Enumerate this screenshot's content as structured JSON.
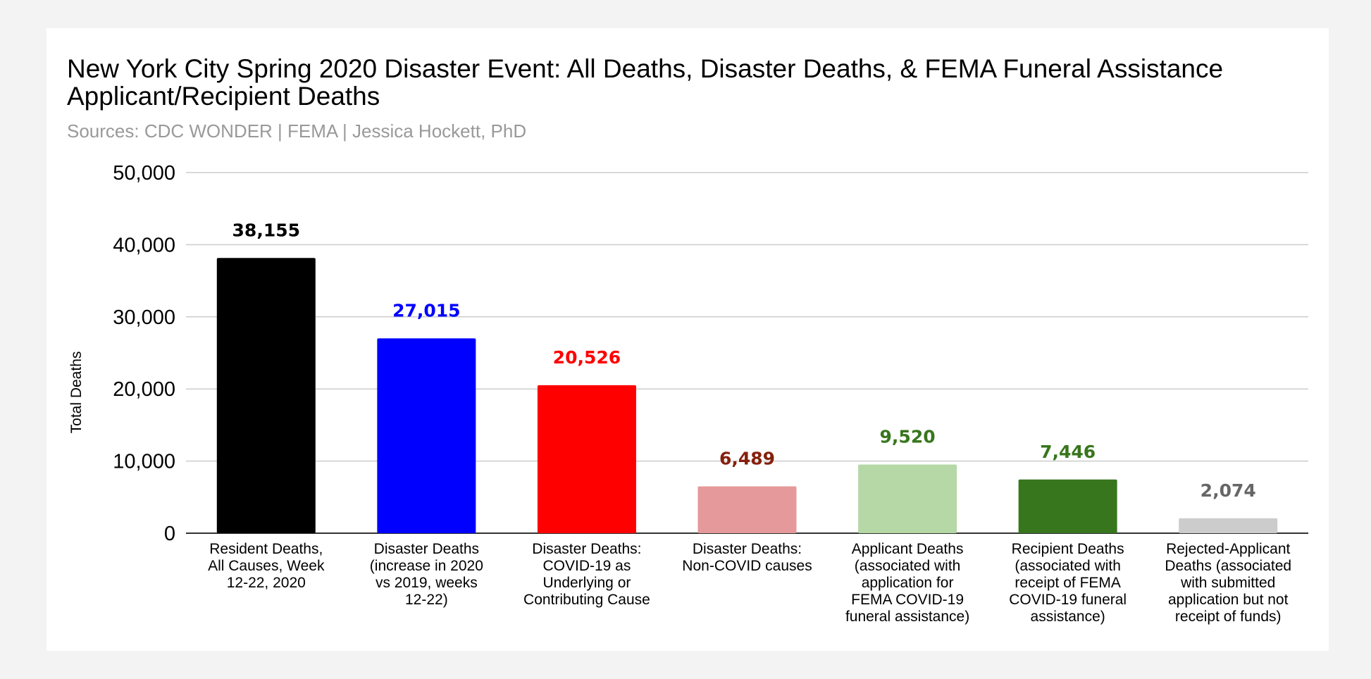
{
  "chart_data": {
    "type": "bar",
    "title": "New York City Spring 2020 Disaster Event: All Deaths, Disaster Deaths, & FEMA Funeral Assistance Applicant/Recipient Deaths",
    "subtitle": "Sources: CDC WONDER | FEMA | Jessica Hockett, PhD",
    "ylabel": "Total Deaths",
    "xlabel": "",
    "ylim": [
      0,
      50000
    ],
    "yticks": [
      0,
      10000,
      20000,
      30000,
      40000,
      50000
    ],
    "ytick_labels": [
      "0",
      "10,000",
      "20,000",
      "30,000",
      "40,000",
      "50,000"
    ],
    "grid": true,
    "legend": "none",
    "categories": [
      [
        "Resident Deaths,",
        "All Causes, Week",
        "12-22, 2020"
      ],
      [
        "Disaster Deaths",
        "(increase in 2020",
        "vs 2019, weeks",
        "12-22)"
      ],
      [
        "Disaster Deaths:",
        "COVID-19 as",
        "Underlying or",
        "Contributing Cause"
      ],
      [
        "Disaster Deaths:",
        "Non-COVID causes"
      ],
      [
        "Applicant Deaths",
        "(associated with",
        "application for",
        "FEMA COVID-19",
        "funeral assistance)"
      ],
      [
        "Recipient Deaths",
        "(associated with",
        "receipt of FEMA",
        "COVID-19 funeral",
        "assistance)"
      ],
      [
        "Rejected-Applicant",
        "Deaths (associated",
        "with submitted",
        "application but not",
        "receipt of funds)"
      ]
    ],
    "values": [
      38155,
      27015,
      20526,
      6489,
      9520,
      7446,
      2074
    ],
    "value_labels": [
      "38,155",
      "27,015",
      "20,526",
      "6,489",
      "9,520",
      "7,446",
      "2,074"
    ],
    "bar_colors": [
      "#000000",
      "#0000ff",
      "#ff0000",
      "#e6999a",
      "#b5d8a6",
      "#38761d",
      "#cccccc"
    ],
    "label_colors": [
      "#000000",
      "#0000ff",
      "#ff0000",
      "#85200c",
      "#38761d",
      "#38761d",
      "#666666"
    ]
  }
}
